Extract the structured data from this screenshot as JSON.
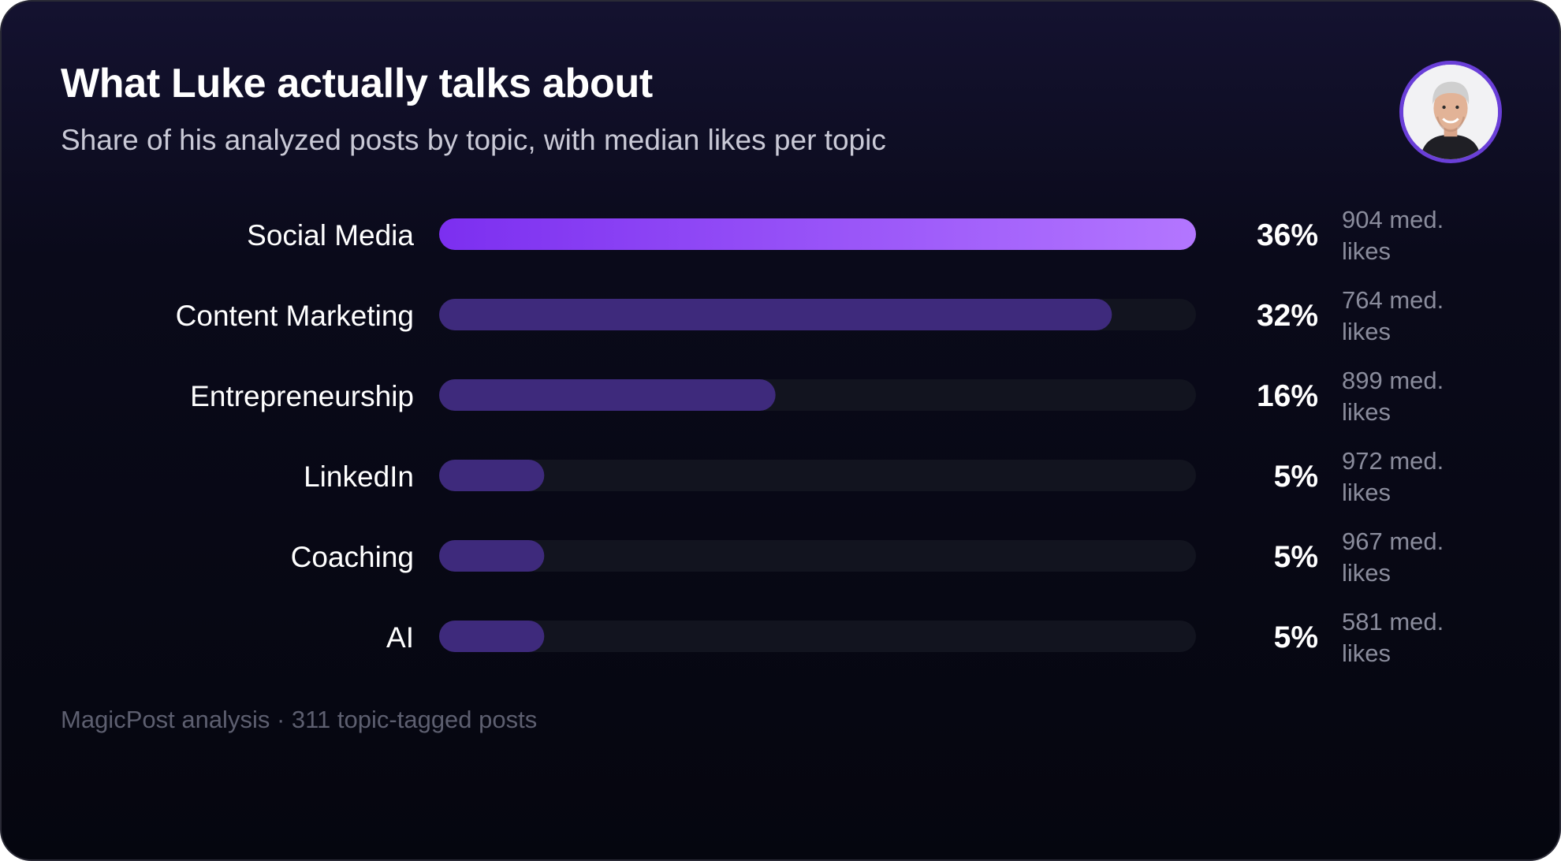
{
  "title": "What Luke actually talks about",
  "subtitle": "Share of his analyzed posts by topic, with median likes per topic",
  "footer": "MagicPost analysis · 311 topic-tagged posts",
  "colors": {
    "top_bar_start": "#7c2ff0",
    "top_bar_end": "#b376ff",
    "bar": "#3e2a7c",
    "track": "#12141f",
    "label": "#ffffff",
    "value": "#ffffff",
    "likes": "#8a8c9c"
  },
  "chart_data": {
    "type": "bar",
    "orientation": "horizontal",
    "categories": [
      "Social Media",
      "Content Marketing",
      "Entrepreneurship",
      "LinkedIn",
      "Coaching",
      "AI"
    ],
    "values": [
      36,
      32,
      16,
      5,
      5,
      5
    ],
    "value_labels": [
      "36%",
      "32%",
      "16%",
      "5%",
      "5%",
      "5%"
    ],
    "median_likes": [
      904,
      764,
      899,
      972,
      967,
      581
    ],
    "likes_labels": [
      [
        "904 med.",
        "likes"
      ],
      [
        "764 med.",
        "likes"
      ],
      [
        "899 med.",
        "likes"
      ],
      [
        "972 med.",
        "likes"
      ],
      [
        "967 med.",
        "likes"
      ],
      [
        "581 med.",
        "likes"
      ]
    ],
    "xlim": [
      0,
      36
    ],
    "highlight_index": 0,
    "grid": false
  }
}
